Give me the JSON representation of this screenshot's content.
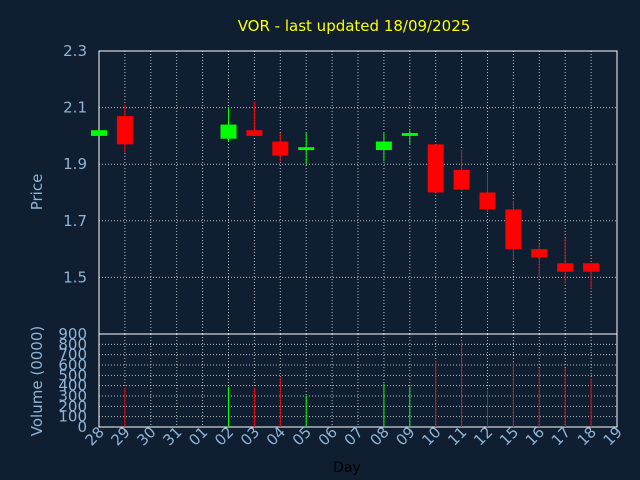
{
  "chart_data": {
    "type": "candlestick",
    "title": "VOR - last updated 18/09/2025",
    "xlabel": "Day",
    "price_ylabel": "Price",
    "volume_ylabel": "Volume (0000)",
    "x_ticks": [
      "28",
      "29",
      "30",
      "31",
      "01",
      "02",
      "03",
      "04",
      "05",
      "06",
      "07",
      "08",
      "09",
      "10",
      "11",
      "12",
      "15",
      "16",
      "17",
      "18",
      "19"
    ],
    "price_yticks": [
      "1.5",
      "1.7",
      "1.9",
      "2.1",
      "2.3"
    ],
    "price_ylim": [
      1.3,
      2.3
    ],
    "volume_yticks": [
      "0",
      "100",
      "200",
      "300",
      "400",
      "500",
      "600",
      "700",
      "800",
      "900"
    ],
    "volume_ylim": [
      0,
      900
    ],
    "grid": true,
    "colors": {
      "up": "#00ff00",
      "down": "#ff0000",
      "background": "#0f1e30",
      "grid": "#ffffff",
      "title": "#ffff00",
      "text": "#8fb4d6"
    },
    "candles": [
      {
        "day": "28",
        "open": 2.0,
        "close": 2.02,
        "high": 2.02,
        "low": 2.0,
        "volume": 0
      },
      {
        "day": "29",
        "open": 2.07,
        "close": 1.97,
        "high": 2.11,
        "low": 1.94,
        "volume": 380
      },
      {
        "day": "02",
        "open": 1.99,
        "close": 2.04,
        "high": 2.1,
        "low": 1.98,
        "volume": 390
      },
      {
        "day": "03",
        "open": 2.02,
        "close": 2.0,
        "high": 2.12,
        "low": 2.0,
        "volume": 380
      },
      {
        "day": "04",
        "open": 1.98,
        "close": 1.93,
        "high": 2.01,
        "low": 1.91,
        "volume": 480
      },
      {
        "day": "05",
        "open": 1.95,
        "close": 1.96,
        "high": 2.01,
        "low": 1.9,
        "volume": 300
      },
      {
        "day": "08",
        "open": 1.95,
        "close": 1.98,
        "high": 2.01,
        "low": 1.91,
        "volume": 420
      },
      {
        "day": "09",
        "open": 2.0,
        "close": 2.01,
        "high": 2.02,
        "low": 1.97,
        "volume": 390
      },
      {
        "day": "10",
        "open": 1.97,
        "close": 1.8,
        "high": 1.97,
        "low": 1.8,
        "volume": 640
      },
      {
        "day": "11",
        "open": 1.88,
        "close": 1.81,
        "high": 1.95,
        "low": 1.81,
        "volume": 820
      },
      {
        "day": "12",
        "open": 1.8,
        "close": 1.74,
        "high": 1.87,
        "low": 1.73,
        "volume": 360
      },
      {
        "day": "15",
        "open": 1.74,
        "close": 1.6,
        "high": 1.77,
        "low": 1.56,
        "volume": 630
      },
      {
        "day": "16",
        "open": 1.6,
        "close": 1.57,
        "high": 1.62,
        "low": 1.5,
        "volume": 570
      },
      {
        "day": "17",
        "open": 1.55,
        "close": 1.52,
        "high": 1.64,
        "low": 1.48,
        "volume": 570
      },
      {
        "day": "18",
        "open": 1.55,
        "close": 1.52,
        "high": 1.55,
        "low": 1.46,
        "volume": 470
      }
    ]
  }
}
